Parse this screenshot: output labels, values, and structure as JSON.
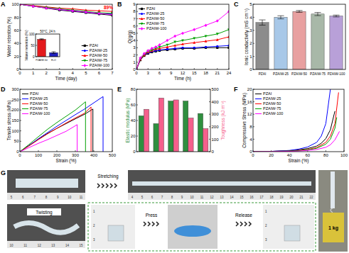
{
  "chart_data": [
    {
      "panel": "A",
      "type": "line",
      "x_label": "Time (day)",
      "y_label": "Water retention (%)",
      "x": [
        0,
        1,
        2,
        3,
        4,
        5,
        6,
        7
      ],
      "xlim": [
        0,
        7
      ],
      "xticks": [
        0,
        1,
        2,
        3,
        4,
        5,
        6,
        7
      ],
      "ylim": [
        0,
        100
      ],
      "yticks": [
        0,
        20,
        40,
        60,
        80,
        100
      ],
      "legend": "bottom-right",
      "annotation": {
        "text": "89%",
        "x": 7,
        "y": 89,
        "color": "#ff0000"
      },
      "series": [
        {
          "name": "PZAI",
          "color": "#000000",
          "marker": "square",
          "values": [
            100,
            97,
            94,
            91,
            89,
            87,
            85,
            83
          ]
        },
        {
          "name": "PZAIW-25",
          "color": "#0000ff",
          "marker": "circle",
          "values": [
            100,
            97,
            95,
            92,
            90,
            88,
            86,
            85
          ]
        },
        {
          "name": "PZAIW-50",
          "color": "#ff0000",
          "marker": "triangle",
          "values": [
            100,
            98,
            96,
            94,
            93,
            91,
            90,
            89
          ]
        },
        {
          "name": "PZAIW-75",
          "color": "#00a000",
          "marker": "triangle-down",
          "values": [
            100,
            97,
            95,
            93,
            91,
            89,
            87,
            86
          ]
        },
        {
          "name": "PZAIW-100",
          "color": "#ff00ff",
          "marker": "diamond",
          "values": [
            100,
            97,
            94,
            92,
            90,
            88,
            86,
            84
          ]
        }
      ]
    },
    {
      "type": "bar",
      "title": "50°C, 24 h",
      "y_label": "Water retention (%)",
      "categories": [
        "PZAIW-50",
        "H₂O"
      ],
      "values": [
        77,
        18
      ],
      "errors": [
        2,
        4
      ],
      "colors": [
        "#e31a1c",
        "#2020c0"
      ],
      "ylim": [
        0,
        100
      ],
      "yticks": [
        0,
        50,
        100
      ]
    },
    {
      "panel": "B",
      "type": "line",
      "x_label": "Time (h)",
      "y_label": "Q(g/g)",
      "x": [
        0,
        1,
        2,
        3,
        4,
        5,
        6,
        8,
        10,
        12,
        15,
        18,
        21,
        24
      ],
      "xlim": [
        0,
        24
      ],
      "xticks": [
        0,
        3,
        6,
        9,
        12,
        15,
        18,
        21,
        24
      ],
      "ylim": [
        0,
        9
      ],
      "yticks": [
        0,
        1,
        2,
        3,
        4,
        5,
        6,
        7,
        8,
        9
      ],
      "legend": "top-left",
      "series": [
        {
          "name": "PZAI",
          "color": "#000000",
          "marker": "square",
          "values": [
            0,
            1.3,
            1.9,
            2.2,
            2.4,
            2.5,
            2.6,
            2.7,
            2.8,
            2.9,
            2.9,
            3.0,
            3.0,
            3.0
          ]
        },
        {
          "name": "PZAIW-25",
          "color": "#0000ff",
          "marker": "circle",
          "values": [
            0,
            1.4,
            2.0,
            2.3,
            2.5,
            2.6,
            2.7,
            2.8,
            2.9,
            3.0,
            3.0,
            3.1,
            3.2,
            3.3
          ]
        },
        {
          "name": "PZAIW-50",
          "color": "#ff0000",
          "marker": "triangle",
          "values": [
            0,
            1.4,
            2.0,
            2.4,
            2.6,
            2.8,
            2.9,
            3.1,
            3.3,
            3.5,
            3.7,
            3.9,
            4.1,
            4.5
          ]
        },
        {
          "name": "PZAIW-75",
          "color": "#00a000",
          "marker": "triangle-down",
          "values": [
            0,
            1.5,
            2.1,
            2.5,
            2.7,
            2.9,
            3.1,
            3.4,
            3.8,
            4.0,
            4.3,
            4.6,
            4.9,
            5.5
          ]
        },
        {
          "name": "PZAIW-100",
          "color": "#ff00ff",
          "marker": "diamond",
          "values": [
            0,
            1.6,
            2.2,
            2.6,
            2.9,
            3.1,
            3.4,
            4.0,
            4.6,
            5.0,
            5.5,
            6.1,
            6.7,
            8.0
          ]
        }
      ]
    },
    {
      "panel": "C",
      "type": "bar",
      "y_label": "Ionic conductivity (mS cm⁻¹)",
      "categories": [
        "PZAI",
        "PZAIW-25",
        "PZAIW-50",
        "PZAIW-75",
        "PZAIW-100"
      ],
      "values": [
        3.6,
        4.0,
        4.45,
        4.25,
        4.1
      ],
      "errors": [
        0.2,
        0.12,
        0.07,
        0.12,
        0.07
      ],
      "colors": [
        "#8c8c8c",
        "#a8c8e8",
        "#e8a0a0",
        "#a8b8a8",
        "#b8a0d8"
      ],
      "ylim": [
        0,
        5
      ],
      "yticks": [
        0,
        1,
        2,
        3,
        4,
        5
      ]
    },
    {
      "panel": "D",
      "type": "line",
      "x_label": "Strain (%)",
      "y_label": "Tensile stress (kPa)",
      "xlim": [
        0,
        500
      ],
      "xticks": [
        0,
        100,
        200,
        300,
        400,
        500
      ],
      "ylim": [
        0,
        300
      ],
      "yticks": [
        0,
        50,
        100,
        150,
        200,
        250,
        300
      ],
      "legend": "top-left",
      "series": [
        {
          "name": "PZAI",
          "color": "#000000",
          "x": [
            0,
            50,
            100,
            150,
            200,
            250,
            300,
            350,
            395,
            395
          ],
          "values": [
            0,
            30,
            60,
            88,
            112,
            135,
            158,
            180,
            205,
            0
          ]
        },
        {
          "name": "PZAIW-25",
          "color": "#0000ff",
          "x": [
            0,
            50,
            100,
            150,
            200,
            250,
            300,
            350,
            400,
            450,
            450
          ],
          "values": [
            0,
            30,
            62,
            92,
            122,
            150,
            178,
            205,
            235,
            265,
            0
          ]
        },
        {
          "name": "PZAIW-50",
          "color": "#ff0000",
          "x": [
            0,
            50,
            100,
            150,
            200,
            250,
            300,
            350,
            385,
            385
          ],
          "values": [
            0,
            28,
            58,
            86,
            112,
            138,
            162,
            185,
            215,
            0
          ]
        },
        {
          "name": "PZAIW-75",
          "color": "#00a000",
          "x": [
            0,
            50,
            100,
            150,
            200,
            250,
            300,
            355,
            355
          ],
          "values": [
            0,
            35,
            72,
            108,
            140,
            170,
            200,
            240,
            0
          ]
        },
        {
          "name": "PZAIW-100",
          "color": "#ff00ff",
          "x": [
            0,
            50,
            100,
            150,
            200,
            250,
            310,
            310
          ],
          "values": [
            0,
            20,
            40,
            58,
            78,
            98,
            130,
            0
          ]
        }
      ]
    },
    {
      "panel": "E",
      "type": "bar",
      "y_label": "Elastic modulus (kPa)",
      "y2_label": "Toughness (kJ m⁻³)",
      "categories": [
        null,
        null,
        null,
        null,
        null
      ],
      "ylim": [
        0,
        80
      ],
      "yticks": [
        0,
        20,
        40,
        60,
        80
      ],
      "y2lim": [
        0,
        500
      ],
      "y2ticks": [
        0,
        100,
        200,
        300,
        400,
        500
      ],
      "series": [
        {
          "color": "#2f8f3f",
          "values": [
            46,
            36,
            65,
            65,
            49
          ]
        },
        {
          "color": "#f5608c",
          "axis": "y2",
          "values": [
            340,
            430,
            415,
            270,
            185
          ]
        }
      ]
    },
    {
      "panel": "F",
      "type": "line",
      "x_label": "Strain (%)",
      "y_label": "Compressive Stress (MPa)",
      "xlim": [
        0,
        100
      ],
      "xticks": [
        0,
        20,
        40,
        60,
        80,
        100
      ],
      "ylim": [
        0,
        20
      ],
      "yticks": [
        0,
        4,
        8,
        12,
        16,
        20
      ],
      "legend": "top-left",
      "series": [
        {
          "name": "PZAI",
          "color": "#000000",
          "x": [
            0,
            20,
            40,
            50,
            60,
            70,
            75,
            80,
            85,
            90
          ],
          "values": [
            0,
            0.1,
            0.3,
            0.6,
            1.0,
            1.8,
            2.7,
            4.2,
            7.0,
            13
          ]
        },
        {
          "name": "PZAIW-25",
          "color": "#0000ff",
          "x": [
            0,
            20,
            40,
            50,
            60,
            70,
            75,
            80,
            85
          ],
          "values": [
            0,
            0.1,
            0.4,
            0.8,
            1.5,
            3.0,
            5.0,
            9.0,
            20
          ]
        },
        {
          "name": "PZAIW-50",
          "color": "#ff0000",
          "x": [
            0,
            20,
            40,
            50,
            60,
            70,
            80,
            85,
            90,
            94
          ],
          "values": [
            0,
            0.1,
            0.2,
            0.4,
            0.7,
            1.3,
            3.0,
            5.0,
            9.0,
            19
          ]
        },
        {
          "name": "PZAIW-75",
          "color": "#00a000",
          "x": [
            0,
            20,
            40,
            50,
            60,
            70,
            80,
            85,
            90,
            92
          ],
          "values": [
            0,
            0.1,
            0.2,
            0.3,
            0.6,
            1.1,
            2.4,
            4.0,
            7.5,
            11
          ]
        },
        {
          "name": "PZAIW-100",
          "color": "#ff00ff",
          "x": [
            0,
            20,
            40,
            50,
            60,
            70,
            80,
            85,
            90,
            95
          ],
          "values": [
            0,
            0.05,
            0.1,
            0.2,
            0.4,
            0.7,
            1.4,
            2.2,
            3.8,
            6.5
          ]
        }
      ]
    }
  ],
  "photo": {
    "label": "G",
    "steps": [
      "Stretching",
      "Twisting",
      "Press",
      "Release"
    ],
    "weight": "1 kg",
    "rulers": [
      [
        5,
        6,
        7,
        8,
        9,
        10,
        11
      ],
      [
        4,
        5,
        6,
        7,
        8,
        9,
        10,
        11,
        12,
        13,
        14,
        15,
        16,
        17,
        18,
        19,
        20,
        21,
        22
      ],
      [
        10,
        11,
        12,
        13,
        14,
        15
      ],
      [
        1,
        2,
        3
      ],
      [
        1,
        2,
        3
      ]
    ]
  }
}
